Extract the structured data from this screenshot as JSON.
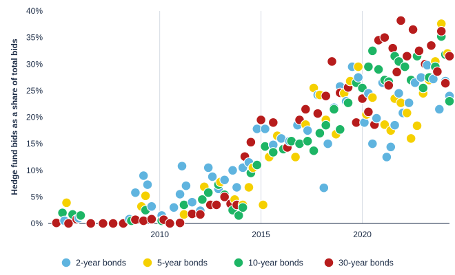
{
  "chart_data": {
    "type": "scatter",
    "ylabel": "Hedge fund bids as a share of total bids",
    "xlim": [
      2004.5,
      2024.3
    ],
    "ylim": [
      0,
      40
    ],
    "x_ticks": [
      2010,
      2015,
      2020
    ],
    "y_ticks": [
      0,
      5,
      10,
      15,
      20,
      25,
      30,
      35,
      40
    ],
    "y_tick_labels": [
      "0%",
      "5%",
      "10%",
      "15%",
      "20%",
      "25%",
      "30%",
      "35%",
      "40%"
    ],
    "grid": "vertical",
    "legend_position": "bottom",
    "series": [
      {
        "name": "2-year bonds",
        "color": "#5fb4df",
        "points": [
          [
            2005.3,
            0.5
          ],
          [
            2006.0,
            1.0
          ],
          [
            2008.5,
            0.8
          ],
          [
            2008.8,
            5.8
          ],
          [
            2009.2,
            9.0
          ],
          [
            2009.4,
            7.3
          ],
          [
            2009.6,
            3.2
          ],
          [
            2010.1,
            1.5
          ],
          [
            2010.7,
            3.0
          ],
          [
            2011.0,
            5.5
          ],
          [
            2011.1,
            10.8
          ],
          [
            2011.3,
            7.1
          ],
          [
            2011.6,
            4.0
          ],
          [
            2012.0,
            2.4
          ],
          [
            2012.4,
            10.5
          ],
          [
            2012.6,
            8.8
          ],
          [
            2012.9,
            6.5
          ],
          [
            2013.2,
            8.2
          ],
          [
            2013.6,
            10.0
          ],
          [
            2013.8,
            6.8
          ],
          [
            2014.1,
            10.5
          ],
          [
            2014.4,
            11.5
          ],
          [
            2014.8,
            17.8
          ],
          [
            2015.2,
            17.8
          ],
          [
            2015.6,
            14.8
          ],
          [
            2016.0,
            16.0
          ],
          [
            2016.4,
            15.5
          ],
          [
            2016.8,
            18.5
          ],
          [
            2017.3,
            17.5
          ],
          [
            2017.8,
            24.2
          ],
          [
            2018.1,
            6.7
          ],
          [
            2018.3,
            15.0
          ],
          [
            2018.6,
            21.8
          ],
          [
            2018.9,
            25.8
          ],
          [
            2019.2,
            23.0
          ],
          [
            2019.5,
            29.5
          ],
          [
            2019.8,
            27.5
          ],
          [
            2020.1,
            19.0
          ],
          [
            2020.3,
            24.5
          ],
          [
            2020.5,
            15.0
          ],
          [
            2020.7,
            19.8
          ],
          [
            2021.0,
            26.5
          ],
          [
            2021.2,
            12.5
          ],
          [
            2021.4,
            14.4
          ],
          [
            2021.6,
            18.5
          ],
          [
            2021.8,
            24.5
          ],
          [
            2022.0,
            20.8
          ],
          [
            2022.3,
            22.7
          ],
          [
            2022.6,
            26.5
          ],
          [
            2022.9,
            27.5
          ],
          [
            2023.2,
            29.8
          ],
          [
            2023.5,
            27.2
          ],
          [
            2023.8,
            21.5
          ],
          [
            2024.1,
            26.8
          ],
          [
            2024.3,
            24.0
          ]
        ]
      },
      {
        "name": "5-year bonds",
        "color": "#f5d000",
        "points": [
          [
            2005.4,
            3.9
          ],
          [
            2006.1,
            1.4
          ],
          [
            2009.1,
            3.2
          ],
          [
            2009.3,
            5.2
          ],
          [
            2011.2,
            1.7
          ],
          [
            2012.2,
            6.9
          ],
          [
            2013.0,
            7.8
          ],
          [
            2013.7,
            4.5
          ],
          [
            2014.1,
            3.5
          ],
          [
            2014.4,
            6.8
          ],
          [
            2014.6,
            10.5
          ],
          [
            2015.1,
            3.5
          ],
          [
            2015.4,
            12.5
          ],
          [
            2015.8,
            16.5
          ],
          [
            2016.3,
            14.5
          ],
          [
            2016.7,
            12.5
          ],
          [
            2017.2,
            18.6
          ],
          [
            2017.6,
            25.5
          ],
          [
            2017.9,
            24.2
          ],
          [
            2018.2,
            19.5
          ],
          [
            2018.7,
            16.8
          ],
          [
            2019.1,
            24.5
          ],
          [
            2019.4,
            26.8
          ],
          [
            2019.8,
            29.5
          ],
          [
            2020.2,
            20.5
          ],
          [
            2020.5,
            23.7
          ],
          [
            2020.8,
            34.5
          ],
          [
            2021.1,
            18.6
          ],
          [
            2021.4,
            17.5
          ],
          [
            2021.6,
            23.5
          ],
          [
            2021.9,
            22.7
          ],
          [
            2022.2,
            20.8
          ],
          [
            2022.4,
            16.0
          ],
          [
            2022.7,
            18.4
          ],
          [
            2023.0,
            24.5
          ],
          [
            2023.3,
            27.0
          ],
          [
            2023.6,
            30.5
          ],
          [
            2023.9,
            37.6
          ],
          [
            2024.2,
            32.0
          ]
        ]
      },
      {
        "name": "10-year bonds",
        "color": "#1db565",
        "points": [
          [
            2005.2,
            2.0
          ],
          [
            2005.7,
            1.7
          ],
          [
            2006.1,
            1.5
          ],
          [
            2008.6,
            0.5
          ],
          [
            2009.3,
            2.5
          ],
          [
            2010.1,
            0.5
          ],
          [
            2011.2,
            3.5
          ],
          [
            2012.1,
            4.5
          ],
          [
            2012.4,
            5.8
          ],
          [
            2012.9,
            7.3
          ],
          [
            2013.2,
            5.4
          ],
          [
            2013.6,
            2.5
          ],
          [
            2013.9,
            1.5
          ],
          [
            2014.1,
            3.0
          ],
          [
            2014.5,
            9.5
          ],
          [
            2014.8,
            11.0
          ],
          [
            2015.2,
            14.5
          ],
          [
            2015.6,
            13.4
          ],
          [
            2016.1,
            14.0
          ],
          [
            2016.5,
            15.5
          ],
          [
            2016.9,
            15.0
          ],
          [
            2017.3,
            15.5
          ],
          [
            2017.6,
            13.7
          ],
          [
            2017.9,
            17.0
          ],
          [
            2018.2,
            18.5
          ],
          [
            2018.6,
            21.5
          ],
          [
            2018.9,
            17.7
          ],
          [
            2019.3,
            22.7
          ],
          [
            2019.7,
            26.5
          ],
          [
            2020.0,
            25.5
          ],
          [
            2020.3,
            29.5
          ],
          [
            2020.5,
            32.5
          ],
          [
            2020.8,
            29.0
          ],
          [
            2021.1,
            27.0
          ],
          [
            2021.3,
            26.7
          ],
          [
            2021.6,
            31.5
          ],
          [
            2021.8,
            30.5
          ],
          [
            2022.1,
            29.5
          ],
          [
            2022.4,
            27.0
          ],
          [
            2022.7,
            31.5
          ],
          [
            2023.0,
            25.5
          ],
          [
            2023.3,
            27.5
          ],
          [
            2023.6,
            29.5
          ],
          [
            2023.9,
            35.2
          ],
          [
            2024.1,
            31.8
          ],
          [
            2024.3,
            23.0
          ]
        ]
      },
      {
        "name": "30-year bonds",
        "color": "#b71c1c",
        "points": [
          [
            2004.9,
            0.1
          ],
          [
            2005.5,
            0.0
          ],
          [
            2005.9,
            0.8
          ],
          [
            2006.6,
            0.0
          ],
          [
            2007.2,
            0.0
          ],
          [
            2007.7,
            0.0
          ],
          [
            2008.2,
            0.0
          ],
          [
            2008.8,
            0.7
          ],
          [
            2009.2,
            0.5
          ],
          [
            2009.6,
            0.8
          ],
          [
            2010.2,
            0.7
          ],
          [
            2010.5,
            0.0
          ],
          [
            2011.0,
            0.1
          ],
          [
            2011.6,
            1.8
          ],
          [
            2012.0,
            1.7
          ],
          [
            2012.5,
            3.5
          ],
          [
            2012.8,
            3.5
          ],
          [
            2013.2,
            5.0
          ],
          [
            2013.5,
            3.7
          ],
          [
            2013.8,
            3.5
          ],
          [
            2014.2,
            12.6
          ],
          [
            2014.5,
            15.3
          ],
          [
            2015.0,
            19.5
          ],
          [
            2015.6,
            19.0
          ],
          [
            2016.3,
            14.3
          ],
          [
            2016.9,
            19.5
          ],
          [
            2017.2,
            21.5
          ],
          [
            2017.8,
            20.7
          ],
          [
            2018.2,
            24.0
          ],
          [
            2018.5,
            30.5
          ],
          [
            2018.9,
            24.6
          ],
          [
            2019.3,
            25.6
          ],
          [
            2019.7,
            19.0
          ],
          [
            2020.0,
            23.5
          ],
          [
            2020.3,
            21.0
          ],
          [
            2020.6,
            18.6
          ],
          [
            2020.8,
            34.5
          ],
          [
            2021.1,
            35.0
          ],
          [
            2021.3,
            26.0
          ],
          [
            2021.5,
            33.0
          ],
          [
            2021.7,
            28.5
          ],
          [
            2021.9,
            38.2
          ],
          [
            2022.2,
            31.5
          ],
          [
            2022.5,
            36.5
          ],
          [
            2022.8,
            32.5
          ],
          [
            2023.1,
            30.0
          ],
          [
            2023.4,
            33.5
          ],
          [
            2023.7,
            28.6
          ],
          [
            2023.9,
            36.2
          ],
          [
            2024.1,
            26.4
          ],
          [
            2024.3,
            31.5
          ]
        ]
      }
    ]
  }
}
